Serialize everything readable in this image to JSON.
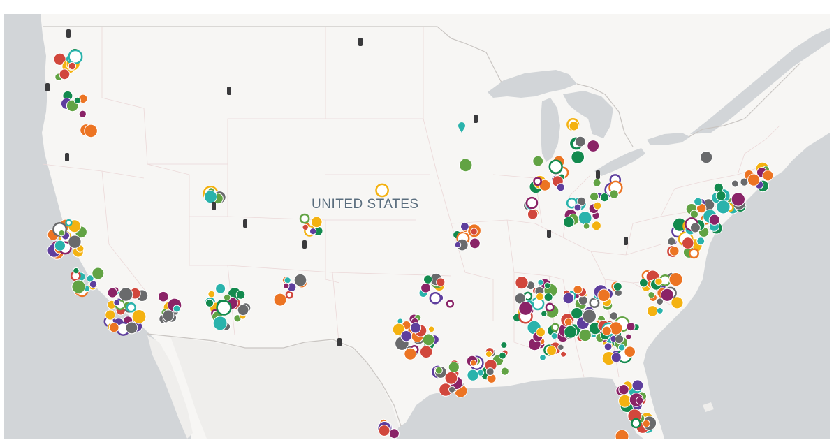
{
  "map": {
    "label": "UNITED STATES",
    "colors": {
      "land": "#f7f6f4",
      "water": "#d2d5d8",
      "border_country": "#c9c5c2",
      "border_state": "#e8d6d6",
      "marker_palette": [
        "#5e3e9d",
        "#2ab3ac",
        "#f4b211",
        "#696a6c",
        "#138a4e",
        "#ec7423",
        "#d1473c",
        "#8a2367",
        "#62a344"
      ]
    },
    "icons": [
      "circle-marker-icon",
      "ring-marker-icon",
      "tech-marker-icon",
      "drop-pin-icon"
    ]
  }
}
